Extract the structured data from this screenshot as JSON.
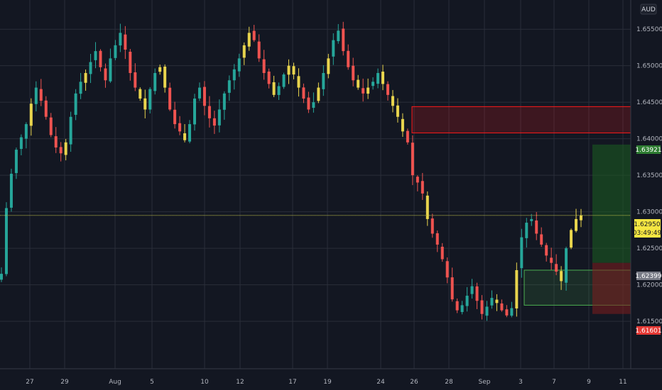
{
  "symbol": {
    "currency": "AUD",
    "last_price": "1.62950",
    "countdown": "03:49:49",
    "price_label_gray": "1.62399",
    "price_label_green": "1.63921",
    "price_label_red": "1.61601"
  },
  "chart_data": {
    "type": "candlestick",
    "y_axis": {
      "ticks": [
        "1.65500",
        "1.65000",
        "1.64500",
        "1.64000",
        "1.63500",
        "1.63000",
        "1.62500",
        "1.62000",
        "1.61500"
      ],
      "range": [
        1.6085,
        1.659
      ],
      "position": "right"
    },
    "x_axis": {
      "ticks": [
        "27",
        "29",
        "Aug",
        "5",
        "10",
        "12",
        "17",
        "19",
        "24",
        "26",
        "28",
        "Sep",
        "3",
        "7",
        "9",
        "11"
      ]
    },
    "colors": {
      "background": "#131722",
      "grid": "#2a2e39",
      "bull": "#26a69a",
      "bear": "#ef5350",
      "doji": "#e8d44d",
      "price_line": "#c8c84a",
      "supply_zone": "#ff1a1a",
      "demand_zone": "#4caf50",
      "target_zone": "#1b5e20",
      "stop_zone": "#7f1d1d"
    },
    "series": [
      {
        "name": "",
        "candles_ohlc_summary": "approximate",
        "closes": [
          1.6215,
          1.6305,
          1.6352,
          1.6385,
          1.6402,
          1.642,
          1.6448,
          1.647,
          1.6452,
          1.643,
          1.6405,
          1.6388,
          1.638,
          1.6395,
          1.643,
          1.6462,
          1.6478,
          1.649,
          1.6505,
          1.652,
          1.6498,
          1.648,
          1.651,
          1.6528,
          1.6545,
          1.6522,
          1.649,
          1.647,
          1.6455,
          1.644,
          1.6468,
          1.649,
          1.6498,
          1.647,
          1.644,
          1.642,
          1.641,
          1.6398,
          1.642,
          1.6455,
          1.647,
          1.6445,
          1.6428,
          1.6418,
          1.644,
          1.6462,
          1.648,
          1.6495,
          1.651,
          1.6528,
          1.6545,
          1.6535,
          1.651,
          1.649,
          1.6475,
          1.646,
          1.6472,
          1.6488,
          1.65,
          1.6488,
          1.647,
          1.6455,
          1.644,
          1.645,
          1.647,
          1.649,
          1.651,
          1.6535,
          1.6548,
          1.652,
          1.6498,
          1.648,
          1.647,
          1.6462,
          1.647,
          1.6478,
          1.649,
          1.6475,
          1.646,
          1.6445,
          1.643,
          1.641,
          1.6395,
          1.635,
          1.634,
          1.6325,
          1.629,
          1.627,
          1.6255,
          1.6235,
          1.621,
          1.618,
          1.6165,
          1.6172,
          1.6185,
          1.6198,
          1.6178,
          1.616,
          1.617,
          1.6182,
          1.6175,
          1.6165,
          1.6158,
          1.6168,
          1.622,
          1.6265,
          1.6285,
          1.629,
          1.627,
          1.6255,
          1.624,
          1.623,
          1.6218,
          1.6205,
          1.625,
          1.6275,
          1.629,
          1.6295
        ]
      },
      {
        "name": "",
        "zone": "supply",
        "top": 1.6444,
        "bottom": 1.6408
      },
      {
        "name": "",
        "zone": "demand",
        "top": 1.622,
        "bottom": 1.6172
      },
      {
        "name": "",
        "zone": "target",
        "top": 1.6392,
        "bottom": 1.623
      },
      {
        "name": "",
        "zone": "stop",
        "top": 1.623,
        "bottom": 1.616
      }
    ],
    "last_price": 1.6295
  }
}
